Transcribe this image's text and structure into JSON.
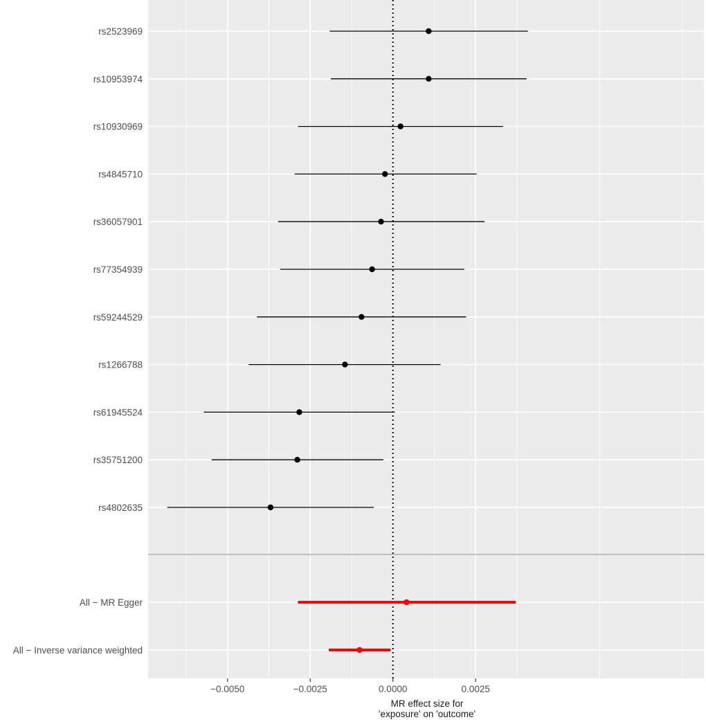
{
  "chart_data": {
    "type": "scatter",
    "subtype": "forest-plot",
    "xlabel_lines": [
      "MR effect size for",
      "'exposure' on 'outcome'"
    ],
    "xlim": [
      -0.0074,
      0.0094
    ],
    "x_ticks": [
      -0.005,
      -0.0025,
      0.0,
      0.0025
    ],
    "x_tick_labels": [
      "−0.0050",
      "−0.0025",
      "0.0000",
      "0.0025"
    ],
    "reference_line_x": 0.0,
    "grid": true,
    "panel_background": "#ebebeb",
    "snps": [
      {
        "label": "rs2523969",
        "estimate": 0.00108,
        "lower": -0.00191,
        "upper": 0.00408
      },
      {
        "label": "rs10953974",
        "estimate": 0.00108,
        "lower": -0.00188,
        "upper": 0.00404
      },
      {
        "label": "rs10930969",
        "estimate": 0.00023,
        "lower": -0.00287,
        "upper": 0.00333
      },
      {
        "label": "rs4845710",
        "estimate": -0.00024,
        "lower": -0.00297,
        "upper": 0.00253
      },
      {
        "label": "rs36057901",
        "estimate": -0.00036,
        "lower": -0.00347,
        "upper": 0.00277
      },
      {
        "label": "rs77354939",
        "estimate": -0.00063,
        "lower": -0.00341,
        "upper": 0.00216
      },
      {
        "label": "rs59244529",
        "estimate": -0.00095,
        "lower": -0.00411,
        "upper": 0.00221
      },
      {
        "label": "rs1266788",
        "estimate": -0.00145,
        "lower": -0.00436,
        "upper": 0.00144
      },
      {
        "label": "rs61945524",
        "estimate": -0.00283,
        "lower": -0.00572,
        "upper": 6e-05
      },
      {
        "label": "rs35751200",
        "estimate": -0.00289,
        "lower": -0.00548,
        "upper": -0.00029
      },
      {
        "label": "rs4802635",
        "estimate": -0.0037,
        "lower": -0.00682,
        "upper": -0.00058
      }
    ],
    "summaries": [
      {
        "label": "All − MR Egger",
        "estimate": 0.00041,
        "lower": -0.00287,
        "upper": 0.00371
      },
      {
        "label": "All − Inverse variance weighted",
        "estimate": -0.00101,
        "lower": -0.00194,
        "upper": -7e-05
      }
    ],
    "colors": {
      "snp": "#000000",
      "summary": "#ff0000",
      "grid": "#ffffff",
      "separator": "#bebebe",
      "tick_text": "#4d4d4d"
    }
  }
}
